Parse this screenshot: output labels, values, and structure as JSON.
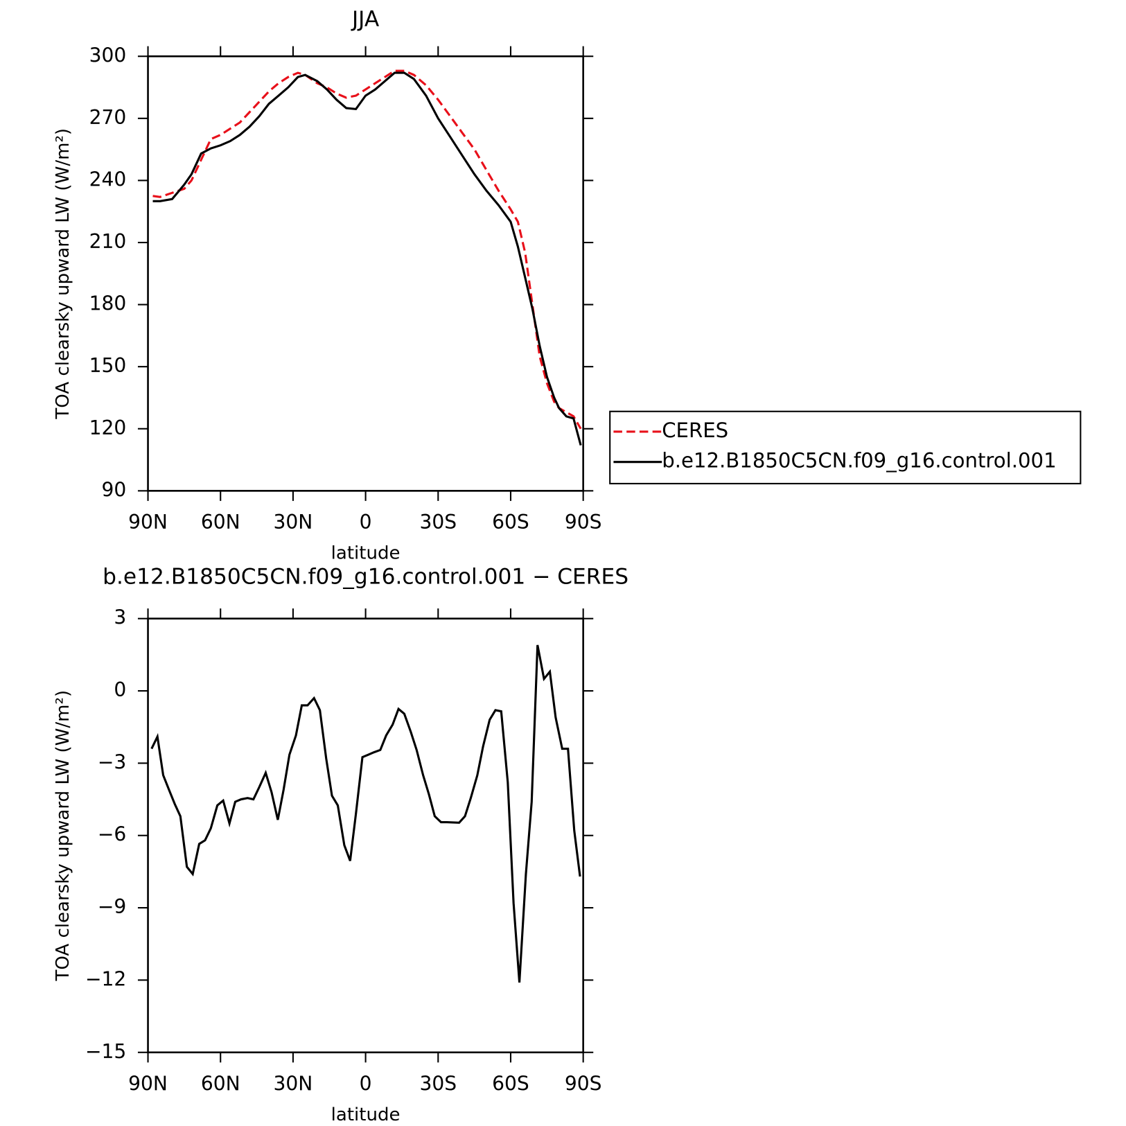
{
  "chart_data": [
    {
      "type": "line",
      "title": "JJA",
      "xlabel": "latitude",
      "ylabel": "TOA clearsky upward LW (W/m²)",
      "x": [
        88,
        85,
        80,
        75,
        72,
        68,
        64,
        60,
        56,
        52,
        48,
        44,
        40,
        36,
        32,
        28,
        25,
        20,
        16,
        12,
        8,
        4,
        0,
        -4,
        -8,
        -12,
        -16,
        -20,
        -25,
        -30,
        -35,
        -40,
        -45,
        -50,
        -55,
        -60,
        -63,
        -66,
        -69,
        -72,
        -75,
        -78,
        -80,
        -83,
        -86,
        -89
      ],
      "series": [
        {
          "name": "CERES",
          "color": "#e8101a",
          "dash": true,
          "values": [
            232.5,
            232,
            234,
            236,
            240,
            250,
            260,
            262,
            265,
            268,
            273,
            278,
            283,
            287,
            290,
            292,
            291,
            287,
            285,
            282,
            280,
            281,
            284,
            287,
            290,
            293,
            293,
            291,
            286,
            279,
            271,
            263,
            255,
            245,
            235,
            226,
            220,
            205,
            180,
            155,
            142,
            133,
            130,
            128,
            126,
            120
          ]
        },
        {
          "name": "b.e12.B1850C5CN.f09_g16.control.001",
          "color": "#000000",
          "dash": false,
          "values": [
            230,
            230,
            231,
            238,
            243,
            253,
            255.5,
            257,
            259,
            262,
            266,
            271,
            277,
            281,
            285,
            290,
            291,
            288,
            284,
            279,
            275,
            274.5,
            281,
            284,
            288,
            292,
            292,
            289,
            281,
            270,
            261,
            252,
            243,
            235,
            228,
            220,
            208,
            193,
            178,
            160,
            145,
            135,
            130,
            126,
            125,
            112
          ]
        }
      ],
      "xlim": [
        90,
        -90
      ],
      "xticks": [
        {
          "value": 90,
          "label": "90N"
        },
        {
          "value": 60,
          "label": "60N"
        },
        {
          "value": 30,
          "label": "30N"
        },
        0,
        {
          "value": -30,
          "label": "30S"
        },
        {
          "value": -60,
          "label": "60S"
        },
        {
          "value": -90,
          "label": "90S"
        }
      ],
      "ylim": [
        90,
        300
      ],
      "yticks": [
        90,
        120,
        150,
        180,
        210,
        240,
        270,
        300
      ],
      "legend": "right"
    },
    {
      "type": "line",
      "title": "b.e12.B1850C5CN.f09_g16.control.001 − CERES",
      "xlabel": "latitude",
      "ylabel": "TOA clearsky upward LW (W/m²)",
      "x": [
        88.5,
        86.1,
        83.7,
        81.3,
        78.9,
        76.6,
        73.9,
        71.5,
        68.8,
        66.4,
        64,
        61.3,
        58.9,
        56.3,
        53.9,
        51.5,
        48.8,
        46.4,
        44,
        41.3,
        38.9,
        36.3,
        33.9,
        31.5,
        28.8,
        26.4,
        24,
        21.3,
        18.9,
        16.3,
        13.9,
        11.5,
        8.8,
        6.4,
        4,
        1.3,
        -1.1,
        -3.4,
        -6.1,
        -8.5,
        -11.2,
        -13.6,
        -16,
        -18.7,
        -21.1,
        -23.8,
        -26.2,
        -28.6,
        -31.2,
        -33.6,
        -38.7,
        -41.1,
        -43.5,
        -46.2,
        -48.6,
        -51.3,
        -53.7,
        -56.1,
        -58.8,
        -61.2,
        -63.6,
        -66.3,
        -68.7,
        -71.1,
        -73.8,
        -76.2,
        -78.6,
        -81.3,
        -83.7,
        -86.3,
        -88.7
      ],
      "values": [
        -2.4,
        -1.9,
        -3.5,
        -4.1,
        -4.7,
        -5.2,
        -7.3,
        -7.6,
        -6.35,
        -6.2,
        -5.7,
        -4.75,
        -4.55,
        -5.5,
        -4.6,
        -4.5,
        -4.45,
        -4.5,
        -4.0,
        -3.4,
        -4.2,
        -5.35,
        -4.1,
        -2.65,
        -1.85,
        -0.6,
        -0.6,
        -0.3,
        -0.8,
        -2.8,
        -4.35,
        -4.75,
        -6.4,
        -7.05,
        -5.1,
        -2.75,
        -2.65,
        -2.55,
        -2.45,
        -1.85,
        -1.4,
        -0.75,
        -0.95,
        -1.7,
        -2.45,
        -3.5,
        -4.3,
        -5.2,
        -5.45,
        -5.45,
        -5.47,
        -5.2,
        -4.45,
        -3.5,
        -2.3,
        -1.2,
        -0.8,
        -0.85,
        -3.8,
        -8.8,
        -12.1,
        -7.6,
        -4.6,
        1.9,
        0.5,
        0.8,
        -1.1,
        -2.4,
        -2.4,
        -5.8,
        -7.7
      ],
      "color": "#000000",
      "xlim": [
        90,
        -90
      ],
      "xticks": [
        {
          "value": 90,
          "label": "90N"
        },
        {
          "value": 60,
          "label": "60N"
        },
        {
          "value": 30,
          "label": "30N"
        },
        0,
        {
          "value": -30,
          "label": "30S"
        },
        {
          "value": -60,
          "label": "60S"
        },
        {
          "value": -90,
          "label": "90S"
        }
      ],
      "ylim": [
        -15,
        3
      ],
      "yticks": [
        {
          "value": -15,
          "label": "−15"
        },
        {
          "value": -12,
          "label": "−12"
        },
        {
          "value": -9,
          "label": "−9"
        },
        {
          "value": -6,
          "label": "−6"
        },
        {
          "value": -3,
          "label": "−3"
        },
        0,
        3
      ]
    }
  ]
}
